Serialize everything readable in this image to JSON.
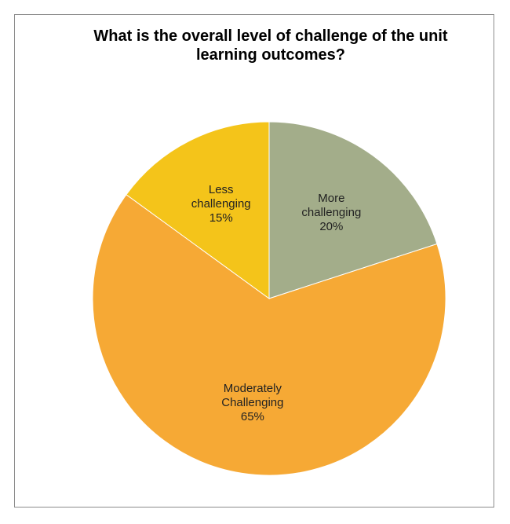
{
  "chart_data": {
    "type": "pie",
    "title": "What is the overall level of challenge of the unit learning outcomes?",
    "categories": [
      "More challenging",
      "Moderately Challenging",
      "Less challenging"
    ],
    "values": [
      20,
      65,
      15
    ],
    "value_labels": [
      "20%",
      "65%",
      "15%"
    ],
    "colors": [
      "#a3ad8a",
      "#f6a935",
      "#f4c41a"
    ]
  }
}
